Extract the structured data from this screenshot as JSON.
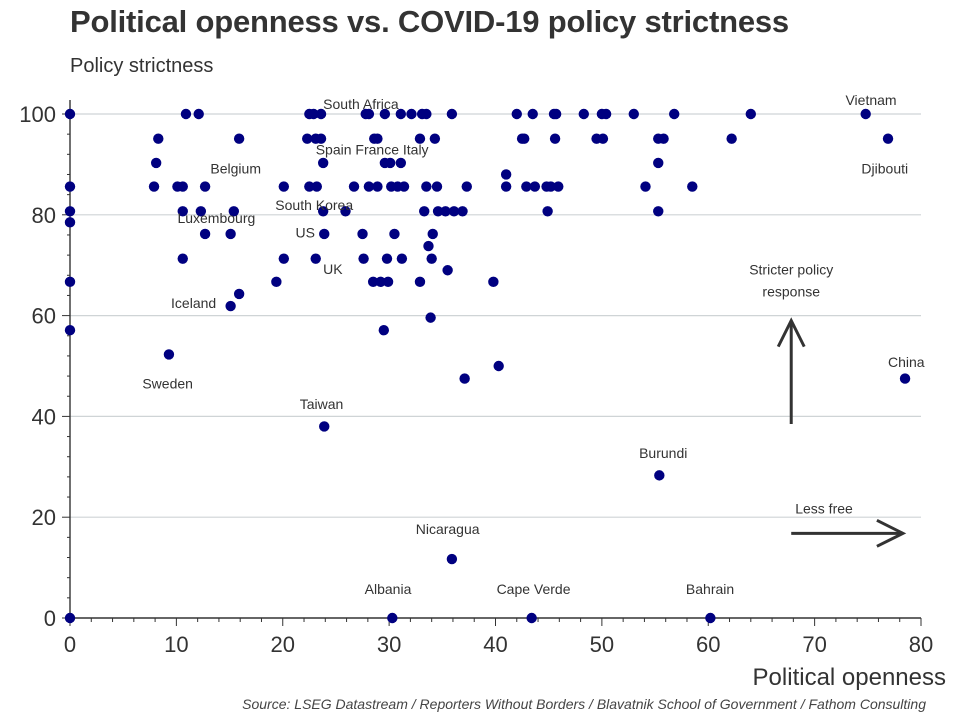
{
  "chart_data": {
    "type": "scatter",
    "title": "Political openness vs. COVID-19 policy strictness",
    "ylabel": "Policy strictness",
    "xlabel": "Political openness",
    "source": "Source: LSEG Datastream / Reporters Without Borders / Blavatnik School of Government / Fathom Consulting",
    "xlim": [
      0,
      80
    ],
    "ylim": [
      0,
      100
    ],
    "xticks": [
      0,
      10,
      20,
      30,
      40,
      50,
      60,
      70,
      80
    ],
    "yticks": [
      0,
      20,
      40,
      60,
      80,
      100
    ],
    "grid": "horizontal",
    "marker_color": "#000080",
    "points": [
      [
        0,
        100
      ],
      [
        0,
        85.6
      ],
      [
        0,
        80.7
      ],
      [
        0,
        78.5
      ],
      [
        0,
        66.7
      ],
      [
        0,
        57.1
      ],
      [
        0,
        0
      ],
      [
        7.9,
        85.6
      ],
      [
        8.1,
        90.3
      ],
      [
        8.3,
        95.1
      ],
      [
        9.3,
        52.3
      ],
      [
        10.1,
        85.6
      ],
      [
        10.6,
        85.6
      ],
      [
        10.6,
        80.7
      ],
      [
        10.6,
        71.3
      ],
      [
        10.9,
        100
      ],
      [
        12.1,
        100
      ],
      [
        12.3,
        80.7
      ],
      [
        12.7,
        76.2
      ],
      [
        12.7,
        85.6
      ],
      [
        15.1,
        76.2
      ],
      [
        15.1,
        61.9
      ],
      [
        15.4,
        80.7
      ],
      [
        15.9,
        95.1
      ],
      [
        15.9,
        64.3
      ],
      [
        19.4,
        66.7
      ],
      [
        20.1,
        71.3
      ],
      [
        20.1,
        85.6
      ],
      [
        22.3,
        95.1
      ],
      [
        22.5,
        100
      ],
      [
        22.5,
        85.6
      ],
      [
        22.9,
        100
      ],
      [
        23.1,
        71.3
      ],
      [
        23.1,
        95.1
      ],
      [
        23.2,
        85.6
      ],
      [
        23.6,
        100
      ],
      [
        23.6,
        95.1
      ],
      [
        23.8,
        90.3
      ],
      [
        23.8,
        80.7
      ],
      [
        23.9,
        76.2
      ],
      [
        23.9,
        38
      ],
      [
        25.9,
        80.7
      ],
      [
        26.7,
        85.6
      ],
      [
        27.5,
        76.2
      ],
      [
        27.6,
        71.3
      ],
      [
        27.8,
        100
      ],
      [
        28.1,
        100
      ],
      [
        28.1,
        85.6
      ],
      [
        28.5,
        66.7
      ],
      [
        28.6,
        95.1
      ],
      [
        28.9,
        95.1
      ],
      [
        28.9,
        85.6
      ],
      [
        29.2,
        66.7
      ],
      [
        29.5,
        57.1
      ],
      [
        29.6,
        90.3
      ],
      [
        29.6,
        100
      ],
      [
        29.8,
        71.3
      ],
      [
        29.9,
        66.7
      ],
      [
        30.1,
        90.3
      ],
      [
        30.2,
        85.6
      ],
      [
        30.3,
        0
      ],
      [
        30.5,
        76.2
      ],
      [
        30.8,
        85.6
      ],
      [
        31.1,
        90.3
      ],
      [
        31.1,
        100
      ],
      [
        31.2,
        71.3
      ],
      [
        31.4,
        85.6
      ],
      [
        32.1,
        100
      ],
      [
        32.9,
        95.1
      ],
      [
        32.9,
        66.7
      ],
      [
        33.1,
        100
      ],
      [
        33.3,
        80.7
      ],
      [
        33.5,
        100
      ],
      [
        33.5,
        85.6
      ],
      [
        33.7,
        73.8
      ],
      [
        33.9,
        59.6
      ],
      [
        34.0,
        71.3
      ],
      [
        34.1,
        76.2
      ],
      [
        34.3,
        95.1
      ],
      [
        34.5,
        85.6
      ],
      [
        34.6,
        80.7
      ],
      [
        35.3,
        80.7
      ],
      [
        35.5,
        69
      ],
      [
        35.9,
        100
      ],
      [
        35.9,
        11.7
      ],
      [
        36.1,
        80.7
      ],
      [
        36.9,
        80.7
      ],
      [
        37.1,
        47.5
      ],
      [
        37.3,
        85.6
      ],
      [
        39.8,
        66.7
      ],
      [
        40.3,
        50
      ],
      [
        41.0,
        88
      ],
      [
        41.0,
        85.6
      ],
      [
        42.0,
        100
      ],
      [
        42.5,
        95.1
      ],
      [
        42.7,
        95.1
      ],
      [
        42.9,
        85.6
      ],
      [
        43.4,
        0
      ],
      [
        43.5,
        100
      ],
      [
        43.7,
        85.6
      ],
      [
        44.8,
        85.6
      ],
      [
        44.9,
        80.7
      ],
      [
        45.2,
        85.6
      ],
      [
        45.5,
        100
      ],
      [
        45.6,
        95.1
      ],
      [
        45.7,
        100
      ],
      [
        45.9,
        85.6
      ],
      [
        48.3,
        100
      ],
      [
        49.5,
        95.1
      ],
      [
        50.0,
        100
      ],
      [
        50.1,
        95.1
      ],
      [
        50.4,
        100
      ],
      [
        53.0,
        100
      ],
      [
        54.1,
        85.6
      ],
      [
        55.3,
        95.1
      ],
      [
        55.3,
        90.3
      ],
      [
        55.3,
        80.7
      ],
      [
        55.4,
        28.3
      ],
      [
        55.8,
        95.1
      ],
      [
        56.8,
        100
      ],
      [
        58.5,
        85.6
      ],
      [
        60.2,
        0
      ],
      [
        62.2,
        95.1
      ],
      [
        64.0,
        100
      ],
      [
        74.8,
        100
      ],
      [
        76.9,
        95.1
      ],
      [
        78.5,
        47.5
      ]
    ],
    "labels": [
      {
        "text": "South Africa",
        "x": 23.8,
        "y": 101
      },
      {
        "text": "Belgium",
        "x": 13.2,
        "y": 88.2
      },
      {
        "text": "Spain France Italy",
        "x": 23.1,
        "y": 92
      },
      {
        "text": "South Korea",
        "x": 19.3,
        "y": 81
      },
      {
        "text": "Luxembourg",
        "x": 10.1,
        "y": 78.4
      },
      {
        "text": "US",
        "x": 21.2,
        "y": 75.5
      },
      {
        "text": "UK",
        "x": 23.8,
        "y": 68.3
      },
      {
        "text": "Iceland",
        "x": 9.5,
        "y": 61.5
      },
      {
        "text": "Sweden",
        "x": 6.8,
        "y": 45.5
      },
      {
        "text": "Taiwan",
        "x": 21.6,
        "y": 41.5
      },
      {
        "text": "Nicaragua",
        "x": 32.5,
        "y": 16.7
      },
      {
        "text": "Albania",
        "x": 27.7,
        "y": 4.8
      },
      {
        "text": "Cape Verde",
        "x": 40.1,
        "y": 4.8
      },
      {
        "text": "Bahrain",
        "x": 57.9,
        "y": 4.8
      },
      {
        "text": "Burundi",
        "x": 53.5,
        "y": 31.7
      },
      {
        "text": "China",
        "x": 76.9,
        "y": 49.8
      },
      {
        "text": "Vietnam",
        "x": 72.9,
        "y": 101.8
      },
      {
        "text": "Djibouti",
        "x": 74.4,
        "y": 88.2
      }
    ],
    "annotations": [
      {
        "text_lines": [
          "Stricter policy",
          "response"
        ],
        "arrow": "up",
        "x": 67.8,
        "y_from": 38.5,
        "y_to": 59
      },
      {
        "text_lines": [
          "Less free"
        ],
        "arrow": "right",
        "y": 16.8,
        "x_from": 67.8,
        "x_to": 78.3
      }
    ]
  }
}
